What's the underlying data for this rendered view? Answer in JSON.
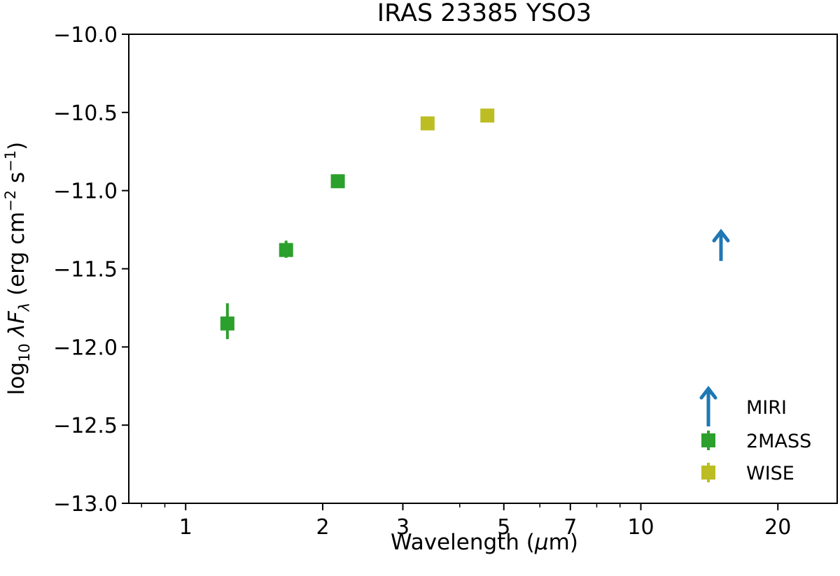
{
  "chart_data": {
    "type": "scatter",
    "title": "IRAS 23385 YSO3",
    "xlabel": "Wavelength (μm)",
    "ylabel": "log₁₀ λF_λ (erg cm⁻² s⁻¹)",
    "x_scale": "log",
    "xlim": [
      0.75,
      27
    ],
    "ylim": [
      -13.0,
      -10.0
    ],
    "x_ticks": [
      1,
      2,
      3,
      5,
      7,
      10,
      20
    ],
    "x_tick_labels": [
      "1",
      "2",
      "3",
      "5",
      "7",
      "10",
      "20"
    ],
    "y_ticks": [
      -10.0,
      -10.5,
      -11.0,
      -11.5,
      -12.0,
      -12.5,
      -13.0
    ],
    "y_tick_labels": [
      "−10.0",
      "−10.5",
      "−11.0",
      "−11.5",
      "−12.0",
      "−12.5",
      "−13.0"
    ],
    "grid": false,
    "legend_position": "bottom-right",
    "series": [
      {
        "name": "MIRI",
        "marker": "upper-arrow",
        "color": "#1f77b4",
        "points": [
          {
            "x": 15.0,
            "y": -11.45
          }
        ]
      },
      {
        "name": "2MASS",
        "marker": "square",
        "color": "#2ca02c",
        "points": [
          {
            "x": 1.235,
            "y": -11.85,
            "yerr_low": 0.1,
            "yerr_high": 0.13
          },
          {
            "x": 1.662,
            "y": -11.38,
            "yerr_low": 0.05,
            "yerr_high": 0.06
          },
          {
            "x": 2.159,
            "y": -10.94,
            "yerr_low": 0.0,
            "yerr_high": 0.0
          }
        ]
      },
      {
        "name": "WISE",
        "marker": "square",
        "color": "#bcbd22",
        "points": [
          {
            "x": 3.4,
            "y": -10.57,
            "yerr_low": 0.0,
            "yerr_high": 0.0
          },
          {
            "x": 4.6,
            "y": -10.52,
            "yerr_low": 0.0,
            "yerr_high": 0.0
          }
        ]
      }
    ]
  }
}
